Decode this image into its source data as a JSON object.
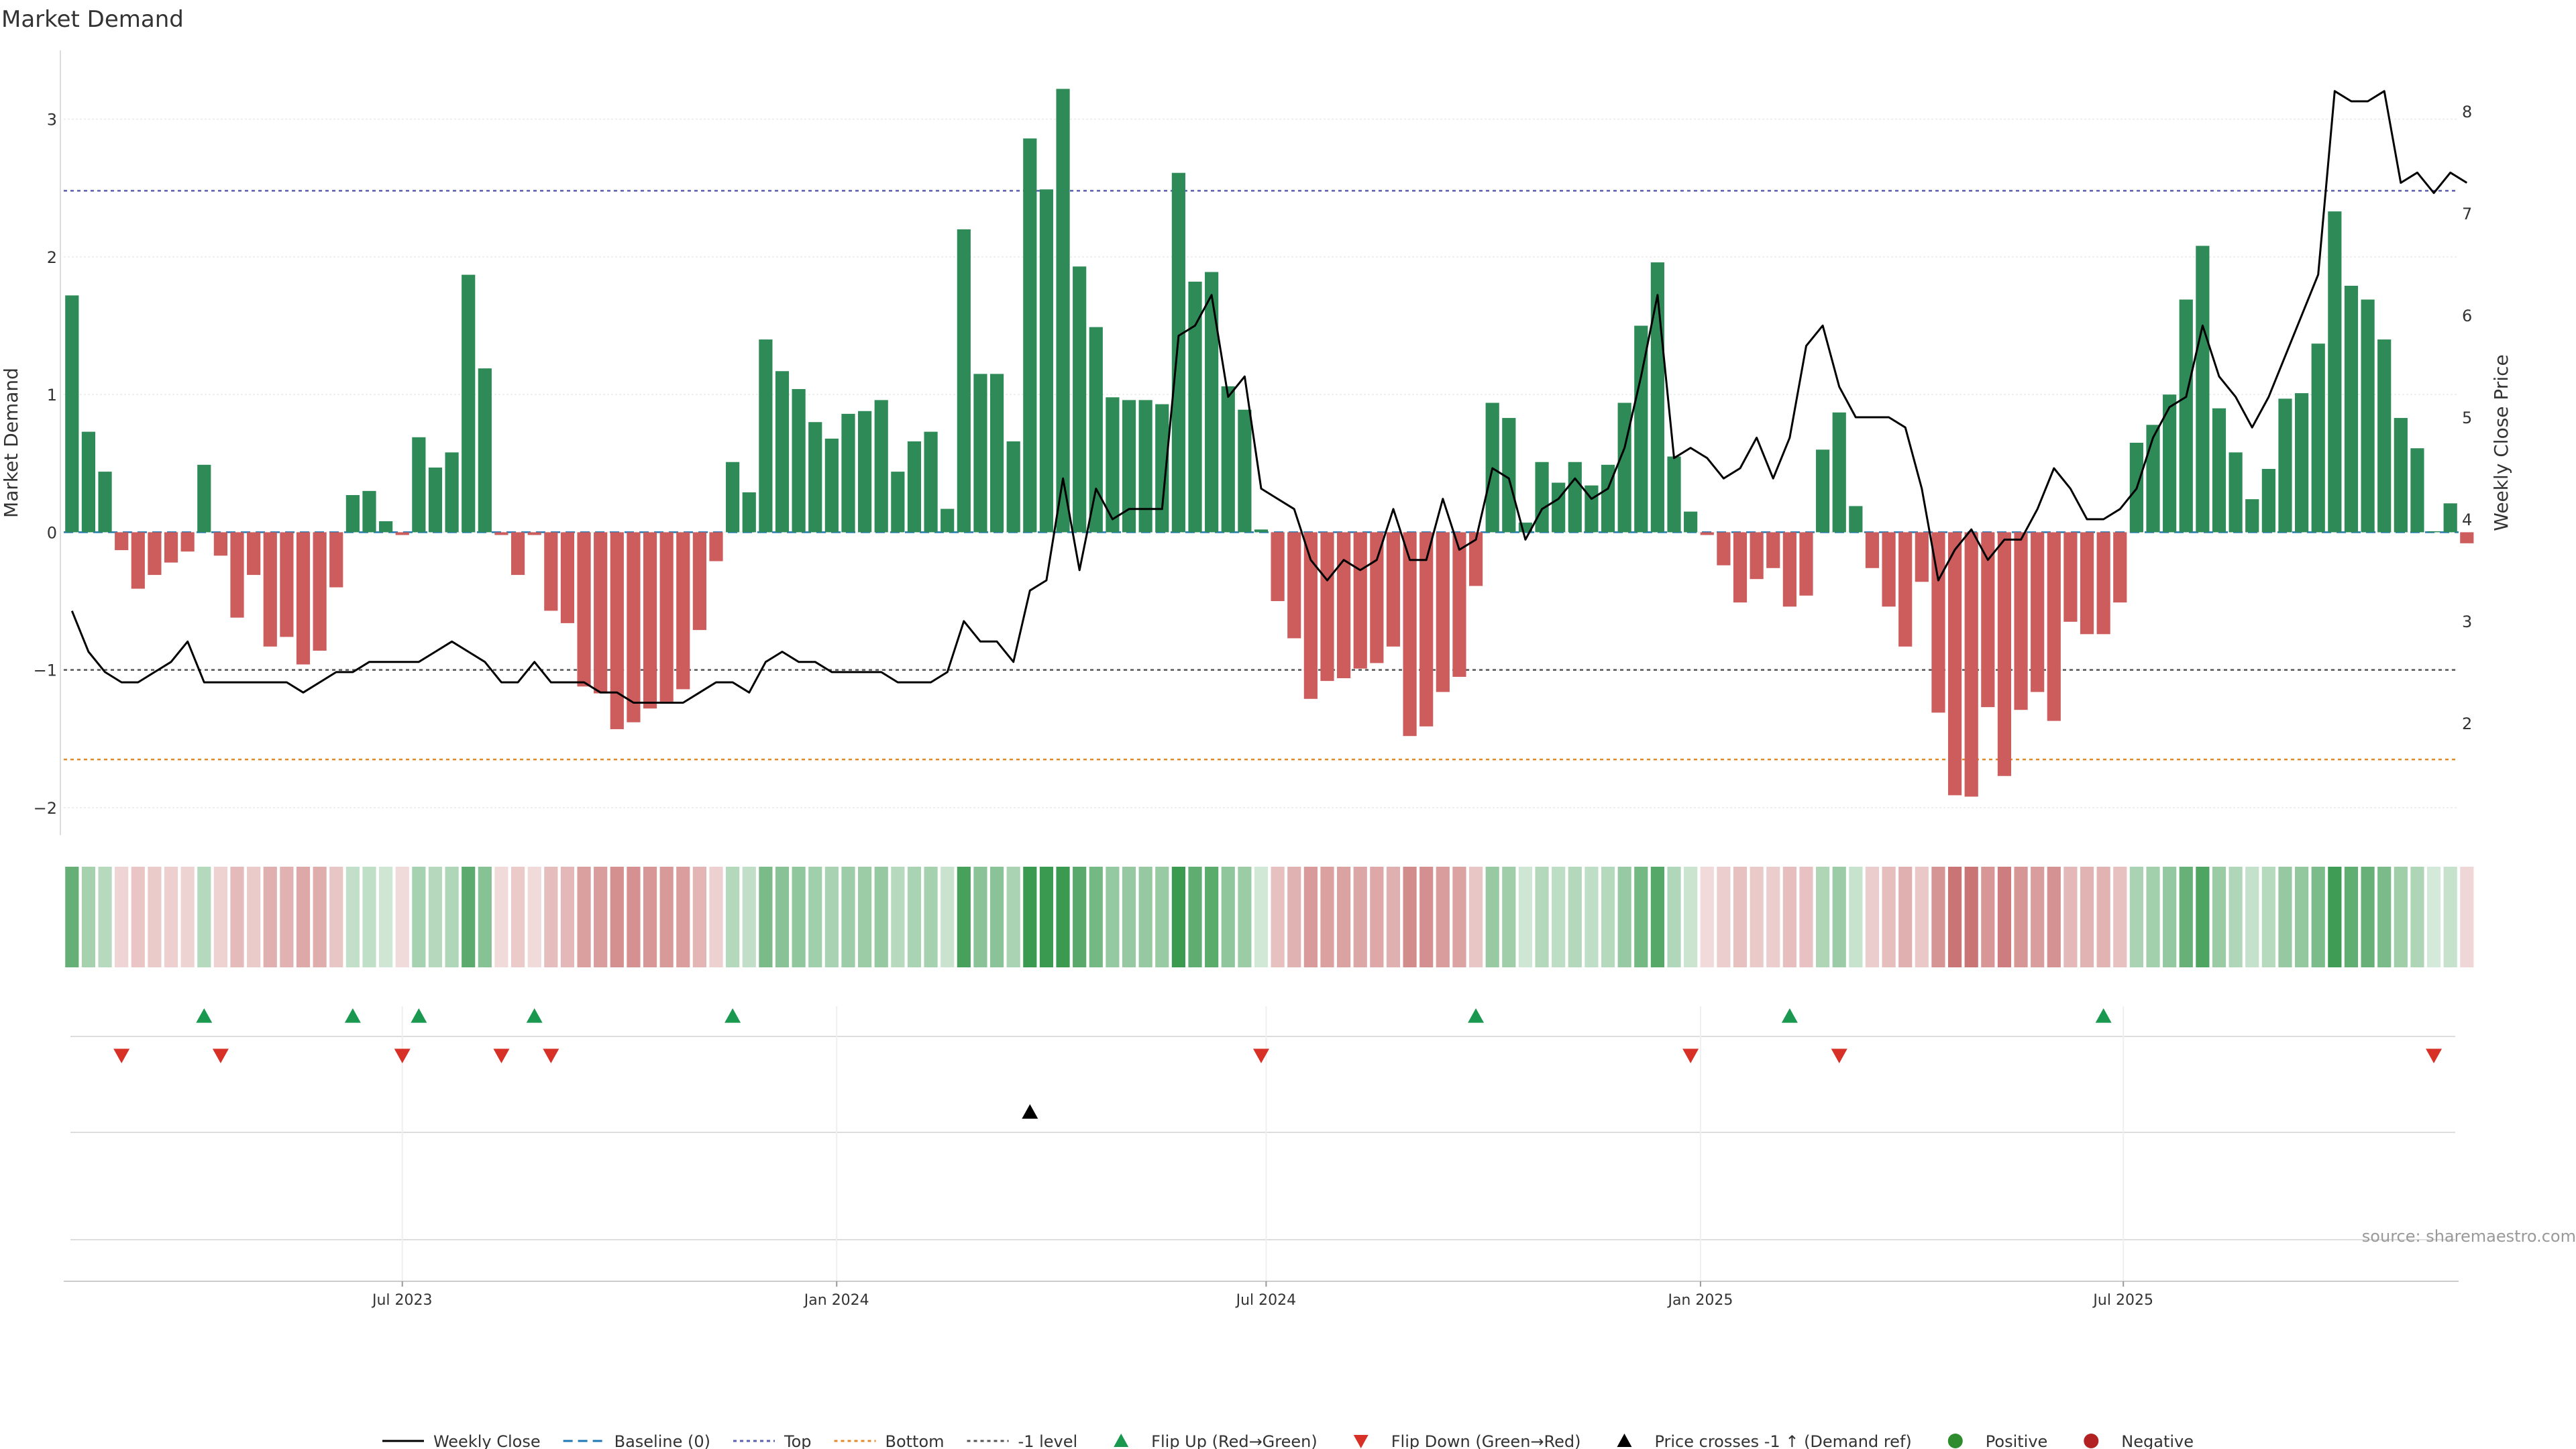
{
  "chart_data": {
    "type": "bar",
    "title": "Market Demand",
    "ylabel_left": "Market Demand",
    "ylabel_right": "Weekly Close Price",
    "ylim_left": [
      -2.2,
      3.5
    ],
    "ylim_right": [
      0.9,
      8.6
    ],
    "yticks_left": [
      -2,
      -1,
      0,
      1,
      2,
      3
    ],
    "ytick_labels_left": [
      "−2",
      "−1",
      "0",
      "1",
      "2",
      "3"
    ],
    "yticks_right": [
      2,
      3,
      4,
      5,
      6,
      7,
      8
    ],
    "ytick_labels_right": [
      "2",
      "3",
      "4",
      "5",
      "6",
      "7",
      "8"
    ],
    "x_start": "2023-03-01",
    "weeks": 145,
    "x_ticks": [
      {
        "week": 20.5,
        "label": "Jul 2023"
      },
      {
        "week": 46.8,
        "label": "Jan 2024"
      },
      {
        "week": 72.8,
        "label": "Jul 2024"
      },
      {
        "week": 99.1,
        "label": "Jan 2025"
      },
      {
        "week": 124.7,
        "label": "Jul 2025"
      }
    ],
    "reference_lines": [
      {
        "name": "Top",
        "value": 2.48,
        "color": "#5a5fb0"
      },
      {
        "name": "-1 level",
        "value": -1.0,
        "color": "#555555"
      },
      {
        "name": "Bottom",
        "value": -1.65,
        "color": "#e08a2a"
      }
    ],
    "demand": [
      1.72,
      0.73,
      0.44,
      -0.13,
      -0.41,
      -0.31,
      -0.22,
      -0.14,
      0.49,
      -0.17,
      -0.62,
      -0.31,
      -0.83,
      -0.76,
      -0.96,
      -0.86,
      -0.4,
      0.27,
      0.3,
      0.08,
      -0.02,
      0.69,
      0.47,
      0.58,
      1.87,
      1.19,
      -0.02,
      -0.31,
      -0.02,
      -0.57,
      -0.66,
      -1.12,
      -1.17,
      -1.43,
      -1.38,
      -1.28,
      -1.23,
      -1.14,
      -0.71,
      -0.21,
      0.51,
      0.29,
      1.4,
      1.17,
      1.04,
      0.8,
      0.68,
      0.86,
      0.88,
      0.96,
      0.44,
      0.66,
      0.73,
      0.17,
      2.2,
      1.15,
      1.15,
      0.66,
      2.86,
      2.49,
      3.22,
      1.93,
      1.49,
      0.98,
      0.96,
      0.96,
      0.93,
      2.61,
      1.82,
      1.89,
      1.06,
      0.89,
      0.02,
      -0.5,
      -0.77,
      -1.21,
      -1.08,
      -1.06,
      -0.99,
      -0.95,
      -0.83,
      -1.48,
      -1.41,
      -1.16,
      -1.05,
      -0.39,
      0.94,
      0.83,
      0.07,
      0.51,
      0.36,
      0.51,
      0.34,
      0.49,
      0.94,
      1.5,
      1.96,
      0.55,
      0.15,
      -0.02,
      -0.24,
      -0.51,
      -0.34,
      -0.26,
      -0.54,
      -0.46,
      0.6,
      0.87,
      0.19,
      -0.26,
      -0.54,
      -0.83,
      -0.36,
      -1.31,
      -1.91,
      -1.92,
      -1.27,
      -1.77,
      -1.29,
      -1.16,
      -1.37,
      -0.65,
      -0.74,
      -0.74,
      -0.51,
      0.65,
      0.78,
      1.0,
      1.69,
      2.08,
      0.9,
      0.58,
      0.24,
      0.46,
      0.97,
      1.01,
      1.37,
      2.33,
      1.79,
      1.69,
      1.4,
      0.83,
      0.61,
      0.0,
      0.21,
      -0.08
    ],
    "weekly_close": [
      3.1,
      2.7,
      2.5,
      2.4,
      2.4,
      2.5,
      2.6,
      2.8,
      2.4,
      2.4,
      2.4,
      2.4,
      2.4,
      2.4,
      2.3,
      2.4,
      2.5,
      2.5,
      2.6,
      2.6,
      2.6,
      2.6,
      2.7,
      2.8,
      2.7,
      2.6,
      2.4,
      2.4,
      2.6,
      2.4,
      2.4,
      2.4,
      2.3,
      2.3,
      2.2,
      2.2,
      2.2,
      2.2,
      2.3,
      2.4,
      2.4,
      2.3,
      2.6,
      2.7,
      2.6,
      2.6,
      2.5,
      2.5,
      2.5,
      2.5,
      2.4,
      2.4,
      2.4,
      2.5,
      3.0,
      2.8,
      2.8,
      2.6,
      3.3,
      3.4,
      4.4,
      3.5,
      4.3,
      4.0,
      4.1,
      4.1,
      4.1,
      5.8,
      5.9,
      6.2,
      5.2,
      5.4,
      4.3,
      4.2,
      4.1,
      3.6,
      3.4,
      3.6,
      3.5,
      3.6,
      4.1,
      3.6,
      3.6,
      4.2,
      3.7,
      3.8,
      4.5,
      4.4,
      3.8,
      4.1,
      4.2,
      4.4,
      4.2,
      4.3,
      4.7,
      5.4,
      6.2,
      4.6,
      4.7,
      4.6,
      4.4,
      4.5,
      4.8,
      4.4,
      4.8,
      5.7,
      5.9,
      5.3,
      5.0,
      5.0,
      5.0,
      4.9,
      4.3,
      3.4,
      3.7,
      3.9,
      3.6,
      3.8,
      3.8,
      4.1,
      4.5,
      4.3,
      4.0,
      4.0,
      4.1,
      4.3,
      4.8,
      5.1,
      5.2,
      5.9,
      5.4,
      5.2,
      4.9,
      5.2,
      5.6,
      6.0,
      6.4,
      8.2,
      8.1,
      8.1,
      8.2,
      7.3,
      7.4,
      7.2,
      7.4,
      7.3
    ],
    "flip_up_weeks": [
      8,
      17,
      21,
      28,
      40,
      85,
      104,
      123
    ],
    "flip_down_weeks": [
      3,
      9,
      20,
      26,
      29,
      72,
      98,
      107,
      143
    ],
    "price_cross_weeks": [
      58
    ],
    "colors": {
      "positive_bar": "#2e8b57",
      "negative_bar": "#cd5c5c",
      "flip_up": "#1a9850",
      "flip_down": "#d73027",
      "price_cross": "#000000",
      "baseline": "#1f77b4",
      "positive_strip_dark": "#3a9a50",
      "negative_strip_dark": "#c05b5b"
    }
  },
  "legend": [
    {
      "label": "Weekly Close",
      "symbol": "line",
      "color": "#000000"
    },
    {
      "label": "Baseline (0)",
      "symbol": "dashed",
      "color": "#1f77b4"
    },
    {
      "label": "Top",
      "symbol": "dotted",
      "color": "#5a5fb0"
    },
    {
      "label": "Bottom",
      "symbol": "dotted",
      "color": "#e08a2a"
    },
    {
      "label": "-1 level",
      "symbol": "dotted",
      "color": "#555555"
    },
    {
      "label": "Flip Up (Red→Green)",
      "symbol": "tri-up",
      "color": "#1a9850"
    },
    {
      "label": "Flip Down (Green→Red)",
      "symbol": "tri-down",
      "color": "#d73027"
    },
    {
      "label": "Price crosses -1 ↑ (Demand ref)",
      "symbol": "tri-up",
      "color": "#000000"
    },
    {
      "label": "Positive",
      "symbol": "dot",
      "color": "#2e8b2e"
    },
    {
      "label": "Negative",
      "symbol": "dot",
      "color": "#b22222"
    }
  ],
  "source": "source: sharemaestro.com"
}
